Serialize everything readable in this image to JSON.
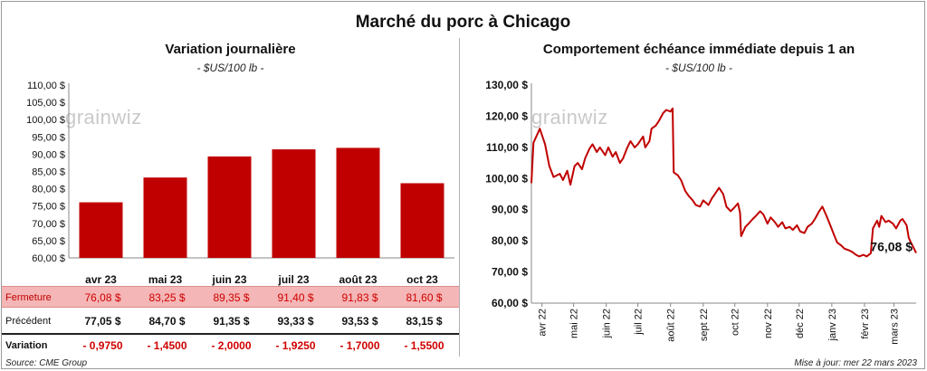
{
  "title": "Marché du porc à Chicago",
  "watermark": "grainwiz",
  "left": {
    "subtitle": "Variation journalière",
    "unit": "- $US/100 lb -",
    "table": {
      "rows": [
        {
          "label": "Fermeture",
          "values": [
            "76,08  $",
            "83,25  $",
            "89,35  $",
            "91,40  $",
            "91,83  $",
            "81,60  $"
          ]
        },
        {
          "label": "Précédent",
          "values": [
            "77,05  $",
            "84,70  $",
            "91,35  $",
            "93,33  $",
            "93,53  $",
            "83,15  $"
          ]
        },
        {
          "label": "Variation",
          "values": [
            "- 0,9750",
            "- 1,4500",
            "- 2,0000",
            "- 1,9250",
            "- 1,7000",
            "- 1,5500"
          ]
        }
      ]
    }
  },
  "right": {
    "subtitle": "Comportement  échéance immédiate depuis 1 an",
    "unit": "- $US/100 lb -",
    "last_label": "76,08 $"
  },
  "footer": {
    "source": "Source: CME Group",
    "updated": "Mise à jour: mer 22 mars 2023"
  },
  "colors": {
    "bar": "#c00000",
    "line": "#c00000",
    "highlight_row": "#f4b6b6",
    "negative": "#d00000"
  },
  "chart_data": [
    {
      "type": "bar",
      "categories": [
        "avr 23",
        "mai 23",
        "juin 23",
        "juil 23",
        "août 23",
        "oct 23"
      ],
      "values": [
        76.08,
        83.25,
        89.35,
        91.4,
        91.83,
        81.6
      ],
      "ylim": [
        60,
        110
      ],
      "yticks": [
        "110,00 $",
        "105,00 $",
        "100,00 $",
        "95,00 $",
        "90,00 $",
        "85,00 $",
        "80,00 $",
        "75,00 $",
        "70,00 $",
        "65,00 $",
        "60,00 $"
      ],
      "grid": false
    },
    {
      "type": "line",
      "ylim": [
        60,
        130
      ],
      "yticks": [
        "130,00 $",
        "120,00 $",
        "110,00 $",
        "100,00 $",
        "90,00 $",
        "80,00 $",
        "70,00 $",
        "60,00 $"
      ],
      "xtick_labels": [
        "avr 22",
        "mai 22",
        "juin 22",
        "juil 22",
        "août 22",
        "sept 22",
        "oct 22",
        "nov 22",
        "déc 22",
        "janv 23",
        "févr 23",
        "mars 23"
      ],
      "x_start": "2022-03-22",
      "x_end": "2023-03-22",
      "points": [
        [
          "2022-03-22",
          98.5
        ],
        [
          "2022-03-24",
          111.5
        ],
        [
          "2022-03-28",
          114.5
        ],
        [
          "2022-03-30",
          116.0
        ],
        [
          "2022-04-04",
          111.0
        ],
        [
          "2022-04-08",
          104.0
        ],
        [
          "2022-04-12",
          100.5
        ],
        [
          "2022-04-18",
          101.5
        ],
        [
          "2022-04-21",
          99.5
        ],
        [
          "2022-04-25",
          102.5
        ],
        [
          "2022-04-28",
          98.0
        ],
        [
          "2022-05-02",
          104.0
        ],
        [
          "2022-05-05",
          105.0
        ],
        [
          "2022-05-09",
          103.0
        ],
        [
          "2022-05-12",
          106.5
        ],
        [
          "2022-05-16",
          109.5
        ],
        [
          "2022-05-19",
          111.0
        ],
        [
          "2022-05-23",
          108.5
        ],
        [
          "2022-05-26",
          110.0
        ],
        [
          "2022-05-31",
          107.5
        ],
        [
          "2022-06-03",
          110.0
        ],
        [
          "2022-06-07",
          107.0
        ],
        [
          "2022-06-10",
          108.5
        ],
        [
          "2022-06-14",
          105.0
        ],
        [
          "2022-06-17",
          106.5
        ],
        [
          "2022-06-21",
          110.0
        ],
        [
          "2022-06-24",
          112.0
        ],
        [
          "2022-06-28",
          110.0
        ],
        [
          "2022-07-01",
          111.0
        ],
        [
          "2022-07-06",
          113.5
        ],
        [
          "2022-07-08",
          110.0
        ],
        [
          "2022-07-12",
          112.0
        ],
        [
          "2022-07-14",
          116.0
        ],
        [
          "2022-07-18",
          117.0
        ],
        [
          "2022-07-21",
          118.5
        ],
        [
          "2022-07-25",
          121.0
        ],
        [
          "2022-07-28",
          122.0
        ],
        [
          "2022-08-01",
          121.5
        ],
        [
          "2022-08-03",
          122.5
        ],
        [
          "2022-08-04",
          102.0
        ],
        [
          "2022-08-08",
          101.0
        ],
        [
          "2022-08-11",
          99.5
        ],
        [
          "2022-08-15",
          96.0
        ],
        [
          "2022-08-18",
          94.5
        ],
        [
          "2022-08-22",
          93.0
        ],
        [
          "2022-08-25",
          91.5
        ],
        [
          "2022-08-29",
          91.0
        ],
        [
          "2022-09-01",
          93.0
        ],
        [
          "2022-09-06",
          91.5
        ],
        [
          "2022-09-09",
          93.5
        ],
        [
          "2022-09-13",
          95.5
        ],
        [
          "2022-09-16",
          97.0
        ],
        [
          "2022-09-20",
          95.0
        ],
        [
          "2022-09-23",
          91.0
        ],
        [
          "2022-09-27",
          89.5
        ],
        [
          "2022-09-30",
          90.5
        ],
        [
          "2022-10-04",
          92.0
        ],
        [
          "2022-10-06",
          89.0
        ],
        [
          "2022-10-07",
          81.5
        ],
        [
          "2022-10-11",
          84.5
        ],
        [
          "2022-10-14",
          85.5
        ],
        [
          "2022-10-18",
          87.0
        ],
        [
          "2022-10-21",
          88.0
        ],
        [
          "2022-10-25",
          89.5
        ],
        [
          "2022-10-28",
          88.5
        ],
        [
          "2022-11-01",
          85.5
        ],
        [
          "2022-11-04",
          87.5
        ],
        [
          "2022-11-08",
          86.0
        ],
        [
          "2022-11-11",
          84.5
        ],
        [
          "2022-11-15",
          86.0
        ],
        [
          "2022-11-18",
          84.0
        ],
        [
          "2022-11-22",
          84.5
        ],
        [
          "2022-11-25",
          83.5
        ],
        [
          "2022-11-29",
          85.0
        ],
        [
          "2022-12-02",
          83.0
        ],
        [
          "2022-12-06",
          82.5
        ],
        [
          "2022-12-09",
          84.5
        ],
        [
          "2022-12-13",
          85.5
        ],
        [
          "2022-12-16",
          87.0
        ],
        [
          "2022-12-20",
          89.5
        ],
        [
          "2022-12-23",
          91.0
        ],
        [
          "2022-12-27",
          88.0
        ],
        [
          "2022-12-30",
          85.5
        ],
        [
          "2023-01-03",
          82.0
        ],
        [
          "2023-01-06",
          79.5
        ],
        [
          "2023-01-10",
          78.5
        ],
        [
          "2023-01-13",
          77.5
        ],
        [
          "2023-01-17",
          77.0
        ],
        [
          "2023-01-20",
          76.5
        ],
        [
          "2023-01-24",
          75.5
        ],
        [
          "2023-01-27",
          75.0
        ],
        [
          "2023-01-31",
          75.5
        ],
        [
          "2023-02-03",
          75.0
        ],
        [
          "2023-02-07",
          76.0
        ],
        [
          "2023-02-09",
          84.0
        ],
        [
          "2023-02-13",
          86.5
        ],
        [
          "2023-02-15",
          84.5
        ],
        [
          "2023-02-17",
          88.0
        ],
        [
          "2023-02-21",
          86.0
        ],
        [
          "2023-02-24",
          86.5
        ],
        [
          "2023-02-28",
          85.5
        ],
        [
          "2023-03-03",
          84.0
        ],
        [
          "2023-03-07",
          86.5
        ],
        [
          "2023-03-09",
          87.0
        ],
        [
          "2023-03-13",
          85.0
        ],
        [
          "2023-03-15",
          81.0
        ],
        [
          "2023-03-17",
          79.5
        ],
        [
          "2023-03-20",
          77.5
        ],
        [
          "2023-03-22",
          76.08
        ]
      ]
    }
  ]
}
